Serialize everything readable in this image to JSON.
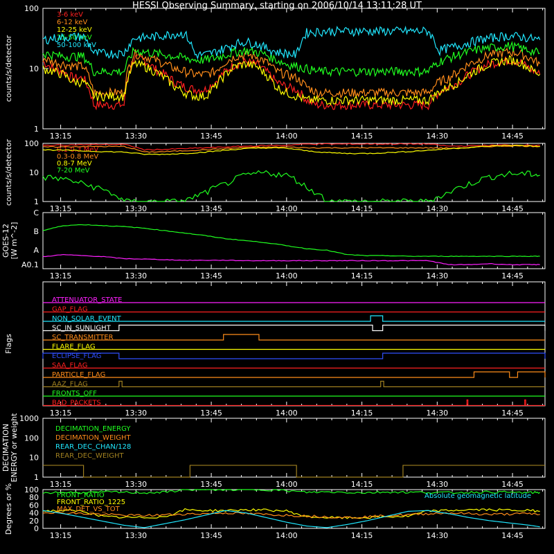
{
  "title": "HESSI Observing Summary, starting on 2006/10/14 13:11:28 UT",
  "time_ticks": [
    "13:15",
    "13:30",
    "13:45",
    "14:00",
    "14:15",
    "14:30",
    "14:45"
  ],
  "time_range_min": [
    0,
    49.5
  ],
  "chart_data": [
    {
      "type": "line",
      "ylabel": "counts/s/detector",
      "yscale": "log",
      "ylim": [
        1,
        100
      ],
      "y_ticks": [
        "1",
        "10",
        "100"
      ],
      "legend_placement": "top-left",
      "x": [
        0,
        1,
        2,
        3,
        4,
        5,
        6,
        7,
        8,
        9,
        10,
        11,
        12,
        13,
        14,
        15,
        16,
        17,
        18,
        19,
        20,
        21,
        22,
        23,
        24,
        25,
        26,
        27,
        28,
        29,
        30,
        31,
        32,
        33,
        34,
        35,
        36,
        37,
        38,
        39,
        40,
        41,
        42,
        43,
        44,
        45,
        46,
        47,
        48,
        49
      ],
      "series": [
        {
          "name": "3-6 keV",
          "color": "#ff2020",
          "values": [
            13,
            10,
            9,
            7,
            7,
            2.5,
            2.5,
            2.5,
            2.5,
            15,
            14,
            10,
            8,
            6,
            5,
            4.5,
            4.5,
            6,
            9,
            12,
            13,
            12,
            9,
            6,
            5,
            4.5,
            3,
            2.5,
            2.5,
            2.5,
            2.5,
            2.5,
            2.5,
            2.5,
            2.5,
            2.5,
            2.5,
            2.5,
            2.5,
            4,
            5,
            6,
            8,
            10,
            12,
            13,
            14,
            13,
            10,
            8
          ]
        },
        {
          "name": "6-12 keV",
          "color": "#ff8c1a",
          "values": [
            15,
            13,
            12,
            11,
            11,
            4,
            4,
            4,
            4,
            18,
            16,
            14,
            12,
            10,
            9,
            8,
            8,
            9,
            13,
            16,
            17,
            16,
            13,
            9,
            8,
            7,
            5,
            4,
            4,
            4,
            4,
            4,
            4,
            4,
            4,
            4,
            4,
            4,
            4,
            6,
            7,
            9,
            12,
            14,
            17,
            18,
            19,
            18,
            15,
            12
          ]
        },
        {
          "name": "12-25 keV",
          "color": "#ffff00",
          "values": [
            10,
            9,
            8,
            6,
            6,
            3.5,
            3.5,
            3.5,
            3.5,
            12,
            11,
            9,
            7,
            5,
            4,
            3.5,
            3.5,
            5,
            8,
            11,
            12,
            11,
            8,
            5,
            4,
            3.5,
            3,
            3,
            3,
            3,
            3,
            3,
            3,
            3,
            3,
            3,
            3,
            3,
            3,
            4,
            5,
            6,
            8,
            10,
            12,
            13,
            14,
            13,
            10,
            8
          ]
        },
        {
          "name": "25-50 keV",
          "color": "#20ff20",
          "values": [
            18,
            17,
            16,
            16,
            16,
            9,
            9,
            9,
            9,
            20,
            19,
            18,
            17,
            16,
            15,
            14,
            14,
            15,
            17,
            19,
            20,
            19,
            17,
            14,
            12,
            11,
            10,
            9,
            9,
            9,
            9,
            9,
            9,
            9,
            9,
            9,
            9,
            9,
            9,
            13,
            15,
            17,
            19,
            21,
            22,
            23,
            24,
            22,
            20,
            18
          ]
        },
        {
          "name": "50-100 keV",
          "color": "#20e8ff",
          "values": [
            30,
            32,
            33,
            34,
            34,
            18,
            18,
            18,
            18,
            32,
            33,
            34,
            36,
            38,
            38,
            17,
            17,
            19,
            22,
            26,
            28,
            26,
            22,
            19,
            18,
            17,
            40,
            41,
            42,
            42,
            42,
            42,
            42,
            42,
            42,
            42,
            42,
            42,
            42,
            20,
            22,
            24,
            27,
            30,
            32,
            34,
            35,
            34,
            32,
            30
          ]
        }
      ]
    },
    {
      "type": "line",
      "ylabel": "counts/s/detector",
      "yscale": "log",
      "ylim": [
        1,
        100
      ],
      "y_ticks": [
        "1",
        "10",
        "100"
      ],
      "legend_placement": "top-left",
      "x": [
        0,
        2,
        4,
        6,
        8,
        10,
        12,
        14,
        16,
        18,
        20,
        22,
        24,
        26,
        28,
        30,
        32,
        34,
        36,
        38,
        40,
        42,
        44,
        46,
        48,
        49
      ],
      "series": [
        {
          "name": "0.1-0.3 MeV",
          "color": "#ff2020",
          "values": [
            85,
            88,
            90,
            92,
            92,
            60,
            62,
            66,
            70,
            75,
            80,
            84,
            86,
            95,
            95,
            95,
            95,
            95,
            95,
            95,
            80,
            82,
            86,
            88,
            87,
            84
          ]
        },
        {
          "name": "0.3-0.8 MeV",
          "color": "#ff8c1a",
          "values": [
            75,
            76,
            78,
            78,
            78,
            50,
            52,
            56,
            60,
            66,
            72,
            74,
            75,
            70,
            70,
            70,
            70,
            70,
            70,
            70,
            68,
            72,
            78,
            82,
            80,
            78
          ]
        },
        {
          "name": "0.8-7 MeV",
          "color": "#ffff00",
          "values": [
            60,
            58,
            55,
            52,
            50,
            42,
            42,
            45,
            50,
            58,
            66,
            70,
            68,
            55,
            48,
            45,
            45,
            48,
            52,
            58,
            65,
            72,
            80,
            85,
            82,
            78
          ]
        },
        {
          "name": "7-20 MeV",
          "color": "#20ff20",
          "values": [
            7,
            6,
            4,
            2.5,
            1,
            1,
            1,
            1,
            2,
            4,
            8,
            10,
            8,
            3,
            1,
            1,
            1,
            1,
            1,
            1,
            2,
            4,
            7,
            9,
            9,
            8
          ]
        }
      ]
    },
    {
      "type": "line",
      "ylabel": "GOES-12 [W m^-2]",
      "y_ticks": [
        "A0.1",
        "A",
        "B",
        "C"
      ],
      "x": [
        0,
        2,
        4,
        6,
        8,
        10,
        12,
        14,
        16,
        18,
        20,
        22,
        24,
        26,
        28,
        30,
        32,
        34,
        36,
        38,
        40,
        42,
        44,
        46,
        48,
        49
      ],
      "series": [
        {
          "color": "#20ff20",
          "values": [
            2.7,
            2.95,
            3.0,
            2.95,
            2.9,
            2.82,
            2.7,
            2.58,
            2.45,
            2.3,
            2.2,
            2.1,
            1.95,
            1.8,
            1.72,
            1.5,
            1.45,
            1.45,
            1.42,
            1.42,
            1.42,
            1.42,
            1.42,
            1.42,
            1.42,
            1.42
          ]
        },
        {
          "color": "#ff20ff",
          "values": [
            1.4,
            1.5,
            1.45,
            1.4,
            1.3,
            1.28,
            1.25,
            1.22,
            1.22,
            1.22,
            1.2,
            1.2,
            1.2,
            1.2,
            1.2,
            1.2,
            1.2,
            1.2,
            1.2,
            1.2,
            1.0,
            1.0,
            1.05,
            1.0,
            1.0,
            1.0
          ]
        }
      ]
    },
    {
      "type": "line",
      "ylabel": "Flags",
      "flags": [
        {
          "name": "ATTENUATOR_STATE",
          "color": "#ff20ff",
          "steps": []
        },
        {
          "name": "GAP_FLAG",
          "color": "#ff2020",
          "steps": []
        },
        {
          "name": "NON_SOLAR_EVENT",
          "color": "#20e8ff",
          "steps": [
            [
              32.3,
              33.5
            ]
          ]
        },
        {
          "name": "SC_IN_SUNLIGHT",
          "color": "#ffffff",
          "steps": [
            [
              7.5,
              32.5
            ],
            [
              33.5,
              49.5
            ]
          ]
        },
        {
          "name": "SC_TRANSMITTER",
          "color": "#ff8c1a",
          "steps": [
            [
              17.8,
              21.3
            ]
          ]
        },
        {
          "name": "FLARE_FLAG",
          "color": "#ffff00",
          "steps": []
        },
        {
          "name": "ECLIPSE_FLAG",
          "color": "#3050ff",
          "steps": [
            [
              0,
              7.5
            ],
            [
              33.5,
              49.5
            ]
          ]
        },
        {
          "name": "SAA_FLAG",
          "color": "#ff2020",
          "steps": []
        },
        {
          "name": "PARTICLE_FLAG",
          "color": "#ff8c1a",
          "steps": [
            [
              42.5,
              46
            ],
            [
              46.8,
              49.5
            ]
          ]
        },
        {
          "name": "AAZ_FLAG",
          "color": "#a08020",
          "steps": [
            [
              7.5,
              7.8
            ],
            [
              33.3,
              33.6
            ]
          ]
        },
        {
          "name": "FRONTS_OFF",
          "color": "#20ff20",
          "steps": []
        },
        {
          "name": "BAD_PACKETS",
          "color": "#ff2020",
          "steps": [
            [
              41.8,
              41.9
            ],
            [
              47.5,
              47.6
            ]
          ]
        }
      ]
    },
    {
      "type": "line",
      "ylabel": "DECIMATION ENERGY or weight",
      "yscale": "log",
      "ylim": [
        1,
        1000
      ],
      "y_ticks": [
        "1",
        "10",
        "100",
        "1000"
      ],
      "legend_placement": "top-left",
      "series": [
        {
          "name": "DECIMATION_ENERGY",
          "color": "#20ff20",
          "steps": []
        },
        {
          "name": "DECIMATION_WEIGHT",
          "color": "#ff8c1a",
          "steps": []
        },
        {
          "name": "REAR_DEC_CHAN/128",
          "color": "#20e8ff",
          "steps": []
        },
        {
          "name": "REAR_DEC_WEIGHT",
          "color": "#a08020",
          "steps": [
            [
              0,
              4,
              4
            ],
            [
              4,
              14.5,
              1
            ],
            [
              14.5,
              25,
              4
            ],
            [
              25,
              35.5,
              1
            ],
            [
              35.5,
              49.5,
              4
            ]
          ]
        }
      ]
    },
    {
      "type": "line",
      "ylabel": "Degrees or %",
      "ylim": [
        0,
        100
      ],
      "y_ticks": [
        "0",
        "20",
        "40",
        "60",
        "80",
        "100"
      ],
      "legend_placement": "top-left",
      "annotation": "Absolute geomagnetic latitude",
      "x": [
        0,
        2,
        4,
        6,
        8,
        10,
        12,
        14,
        16,
        18,
        20,
        22,
        24,
        26,
        28,
        30,
        32,
        34,
        36,
        38,
        40,
        42,
        44,
        46,
        48,
        49
      ],
      "series": [
        {
          "name": "FRONT_RATIO",
          "color": "#20ff20",
          "values": [
            92,
            93,
            92,
            94,
            93,
            92,
            93,
            100,
            100,
            100,
            100,
            100,
            97,
            93,
            94,
            93,
            92,
            94,
            93,
            93,
            92,
            93,
            94,
            93,
            92,
            93
          ]
        },
        {
          "name": "FRONT_RATIO_1225",
          "color": "#ffff00",
          "values": [
            45,
            46,
            44,
            30,
            28,
            28,
            30,
            48,
            46,
            46,
            48,
            47,
            45,
            30,
            28,
            27,
            28,
            30,
            31,
            45,
            46,
            48,
            48,
            47,
            46,
            44
          ]
        },
        {
          "name": "MAX_DET_VS_TOT",
          "color": "#ff8c1a",
          "values": [
            42,
            40,
            38,
            36,
            34,
            33,
            35,
            37,
            38,
            40,
            38,
            36,
            34,
            32,
            30,
            28,
            30,
            33,
            35,
            38,
            40,
            38,
            36,
            37,
            38,
            36
          ]
        },
        {
          "name": "",
          "color": "#20e8ff",
          "values": [
            46,
            38,
            28,
            18,
            8,
            2,
            12,
            22,
            34,
            46,
            40,
            28,
            16,
            6,
            2,
            10,
            20,
            32,
            44,
            46,
            38,
            28,
            20,
            14,
            8,
            4
          ]
        }
      ]
    }
  ]
}
